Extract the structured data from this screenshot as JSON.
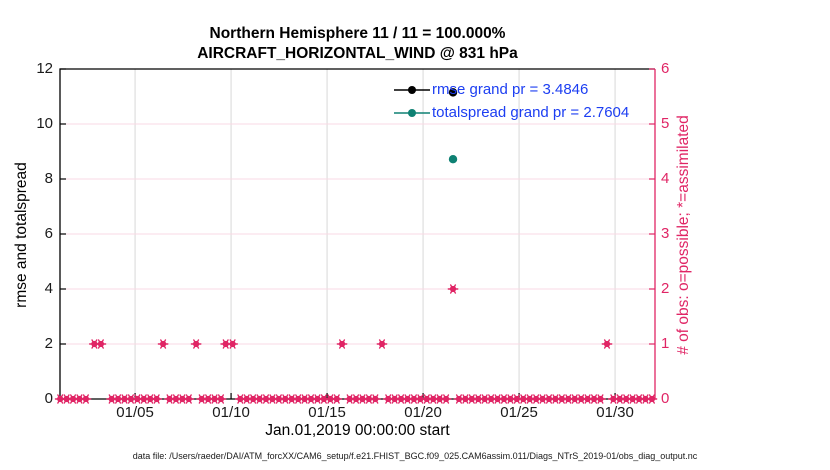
{
  "figure": {
    "footer": "data file: /Users/raeder/DAI/ATM_forcXX/CAM6_setup/f.e21.FHIST_BGC.f09_025.CAM6assim.011/Diags_NTrS_2019-01/obs_diag_output.nc"
  },
  "chart_data": {
    "type": "line",
    "title_line1": "Northern Hemisphere 11 / 11 = 100.000%",
    "title_line2": "AIRCRAFT_HORIZONTAL_WIND @ 831 hPa",
    "xlabel": "Jan.01,2019 00:00:00 start",
    "ylabel_left": "rmse and totalspread",
    "ylabel_right": "# of obs: o=possible; *=assimilated",
    "x_axis": {
      "min_day": 1.09,
      "max_day": 32.08,
      "ticks": [
        {
          "day": 5,
          "label": "01/05"
        },
        {
          "day": 10,
          "label": "01/10"
        },
        {
          "day": 15,
          "label": "01/15"
        },
        {
          "day": 20,
          "label": "01/20"
        },
        {
          "day": 25,
          "label": "01/25"
        },
        {
          "day": 30,
          "label": "01/30"
        }
      ]
    },
    "y_left": {
      "min": 0,
      "max": 12,
      "ticks": [
        0,
        2,
        4,
        6,
        8,
        10,
        12
      ]
    },
    "y_right": {
      "min": 0,
      "max": 6,
      "ticks": [
        0,
        1,
        2,
        3,
        4,
        5,
        6
      ]
    },
    "grid": {
      "vertical_color": "#d8d8d8",
      "horizontal_color": "#f9d9e4"
    },
    "legend": [
      {
        "label": "rmse grand pr = 3.4846",
        "color": "#000000"
      },
      {
        "label": "totalspread grand pr = 2.7604",
        "color": "#0e8173"
      }
    ],
    "rmse_grand": 3.4846,
    "totalspread_grand": 2.7604,
    "series": [
      {
        "name": "rmse",
        "color": "#000000",
        "points": [
          {
            "day": 21.56,
            "value": 11.15
          }
        ]
      },
      {
        "name": "totalspread",
        "color": "#0e8173",
        "points": [
          {
            "day": 21.56,
            "value": 8.72
          }
        ]
      }
    ],
    "obs_counts": {
      "color": "#e02565",
      "axis": "right",
      "bin_start_day": 1.1,
      "bin_end_day": 31.95,
      "bin_step_days": 0.335,
      "default_count": 0,
      "nonzero_bins": [
        {
          "day": 2.88,
          "count": 1
        },
        {
          "day": 3.22,
          "count": 1
        },
        {
          "day": 6.46,
          "count": 1
        },
        {
          "day": 8.18,
          "count": 1
        },
        {
          "day": 9.72,
          "count": 1
        },
        {
          "day": 10.08,
          "count": 1
        },
        {
          "day": 15.78,
          "count": 1
        },
        {
          "day": 17.86,
          "count": 1
        },
        {
          "day": 21.56,
          "count": 2
        },
        {
          "day": 29.58,
          "count": 1
        }
      ]
    }
  }
}
